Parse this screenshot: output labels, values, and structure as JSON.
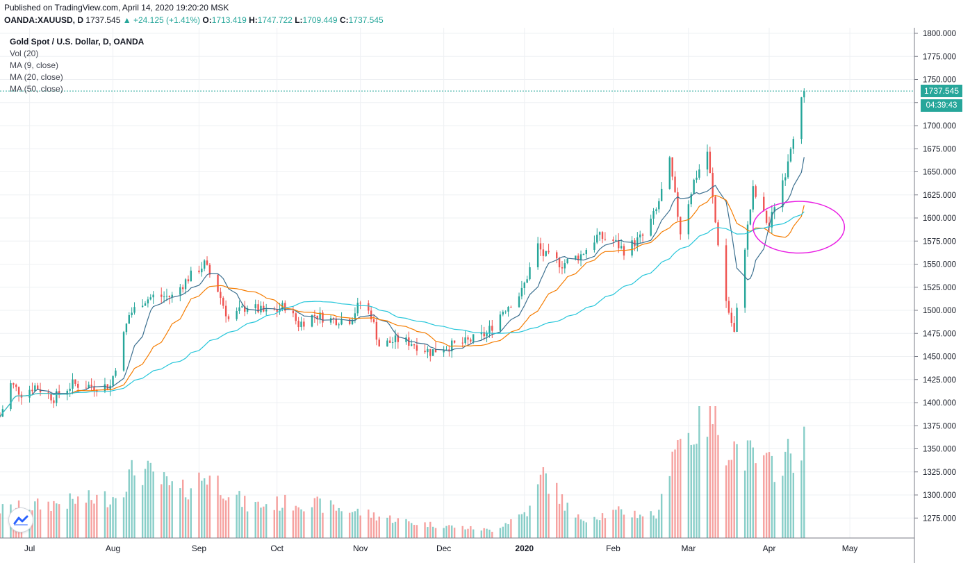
{
  "header": {
    "published": "Published on TradingView.com, April 14, 2020 19:20:20 MSK",
    "symbol": "OANDA:XAUUSD, D",
    "last": "1737.545",
    "change": "▲ +24.125 (+1.41%)",
    "o_label": "O:",
    "o": "1713.419",
    "h_label": "H:",
    "h": "1747.722",
    "l_label": "L:",
    "l": "1709.449",
    "c_label": "C:",
    "c": "1737.545"
  },
  "legend": {
    "title": "Gold Spot / U.S. Dollar, D, OANDA",
    "vol": "Vol (20)",
    "ma9": "MA (9, close)",
    "ma20": "MA (20, close)",
    "ma50": "MA (50, close)"
  },
  "price_tag": {
    "last": "1737.545",
    "countdown": "04:39:43"
  },
  "colors": {
    "up": "#26a69a",
    "down": "#ef5350",
    "ma9": "#3b6f8f",
    "ma20": "#f57c00",
    "ma50": "#26c6da",
    "annotation": "#e91ee3",
    "grid": "#eef0f3"
  },
  "chart_data": {
    "type": "candlestick",
    "title": "Gold Spot / U.S. Dollar, D, OANDA",
    "y_range": [
      1250,
      1800
    ],
    "y_ticks": [
      1275,
      1300,
      1325,
      1350,
      1375,
      1400,
      1425,
      1450,
      1475,
      1500,
      1525,
      1550,
      1575,
      1600,
      1625,
      1650,
      1675,
      1700,
      1725,
      1750,
      1775,
      1800
    ],
    "y_tick_labels": [
      "1275.000",
      "1300.000",
      "1325.000",
      "1350.000",
      "1375.000",
      "1400.000",
      "1425.000",
      "1450.000",
      "1475.000",
      "1500.000",
      "1525.000",
      "1550.000",
      "1575.000",
      "1600.000",
      "1625.000",
      "1650.000",
      "1675.000",
      "1700.000",
      "1725.000",
      "1750.000",
      "1775.000",
      "1800.000"
    ],
    "x_labels": [
      "Jul",
      "Aug",
      "Sep",
      "Oct",
      "Nov",
      "Dec",
      "2020",
      "Feb",
      "Mar",
      "Apr",
      "May"
    ],
    "x_label_dates": [
      "2019-07-01",
      "2019-08-01",
      "2019-09-02",
      "2019-10-01",
      "2019-11-01",
      "2019-12-02",
      "2020-01-01",
      "2020-02-03",
      "2020-03-02",
      "2020-04-01",
      "2020-05-01"
    ],
    "x_range": [
      "2019-06-20",
      "2020-05-25"
    ],
    "last_price": 1737.545,
    "price_path": [
      [
        "2019-06-20",
        1385
      ],
      [
        "2019-06-24",
        1420
      ],
      [
        "2019-06-28",
        1410
      ],
      [
        "2019-07-03",
        1418
      ],
      [
        "2019-07-10",
        1405
      ],
      [
        "2019-07-17",
        1420
      ],
      [
        "2019-07-24",
        1418
      ],
      [
        "2019-07-31",
        1418
      ],
      [
        "2019-08-07",
        1495
      ],
      [
        "2019-08-12",
        1510
      ],
      [
        "2019-08-16",
        1515
      ],
      [
        "2019-08-23",
        1515
      ],
      [
        "2019-08-29",
        1535
      ],
      [
        "2019-09-04",
        1550
      ],
      [
        "2019-09-09",
        1522
      ],
      [
        "2019-09-13",
        1490
      ],
      [
        "2019-09-20",
        1505
      ],
      [
        "2019-09-27",
        1497
      ],
      [
        "2019-10-01",
        1500
      ],
      [
        "2019-10-04",
        1505
      ],
      [
        "2019-10-09",
        1485
      ],
      [
        "2019-10-15",
        1495
      ],
      [
        "2019-10-21",
        1490
      ],
      [
        "2019-10-28",
        1490
      ],
      [
        "2019-11-01",
        1508
      ],
      [
        "2019-11-05",
        1495
      ],
      [
        "2019-11-08",
        1462
      ],
      [
        "2019-11-15",
        1468
      ],
      [
        "2019-11-20",
        1465
      ],
      [
        "2019-11-27",
        1455
      ],
      [
        "2019-12-02",
        1460
      ],
      [
        "2019-12-10",
        1465
      ],
      [
        "2019-12-18",
        1475
      ],
      [
        "2019-12-24",
        1500
      ],
      [
        "2019-12-31",
        1520
      ],
      [
        "2020-01-06",
        1570
      ],
      [
        "2020-01-08",
        1560
      ],
      [
        "2020-01-15",
        1550
      ],
      [
        "2020-01-22",
        1560
      ],
      [
        "2020-01-28",
        1580
      ],
      [
        "2020-02-03",
        1575
      ],
      [
        "2020-02-07",
        1565
      ],
      [
        "2020-02-14",
        1580
      ],
      [
        "2020-02-19",
        1608
      ],
      [
        "2020-02-24",
        1660
      ],
      [
        "2020-02-28",
        1585
      ],
      [
        "2020-03-04",
        1640
      ],
      [
        "2020-03-09",
        1672
      ],
      [
        "2020-03-12",
        1595
      ],
      [
        "2020-03-16",
        1510
      ],
      [
        "2020-03-19",
        1475
      ],
      [
        "2020-03-23",
        1570
      ],
      [
        "2020-03-26",
        1630
      ],
      [
        "2020-04-01",
        1590
      ],
      [
        "2020-04-03",
        1615
      ],
      [
        "2020-04-07",
        1650
      ],
      [
        "2020-04-09",
        1680
      ],
      [
        "2020-04-14",
        1737.545
      ]
    ],
    "moving_averages": [
      {
        "name": "MA (9, close)",
        "color": "#3b6f8f"
      },
      {
        "name": "MA (20, close)",
        "color": "#f57c00"
      },
      {
        "name": "MA (50, close)",
        "color": "#26c6da"
      }
    ],
    "volume": {
      "name": "Vol (20)",
      "levels": [
        [
          "2019-06-20",
          0.22
        ],
        [
          "2019-08-01",
          0.32
        ],
        [
          "2019-08-10",
          0.55
        ],
        [
          "2019-08-26",
          0.35
        ],
        [
          "2019-09-05",
          0.5
        ],
        [
          "2019-09-20",
          0.25
        ],
        [
          "2019-10-10",
          0.28
        ],
        [
          "2019-11-01",
          0.2
        ],
        [
          "2019-11-20",
          0.12
        ],
        [
          "2019-12-20",
          0.06
        ],
        [
          "2020-01-03",
          0.22
        ],
        [
          "2020-01-08",
          0.5
        ],
        [
          "2020-01-20",
          0.15
        ],
        [
          "2020-02-05",
          0.2
        ],
        [
          "2020-02-20",
          0.18
        ],
        [
          "2020-02-25",
          0.75
        ],
        [
          "2020-03-02",
          0.8
        ],
        [
          "2020-03-06",
          0.9
        ],
        [
          "2020-03-10",
          1.0
        ],
        [
          "2020-03-16",
          0.75
        ],
        [
          "2020-03-23",
          0.65
        ],
        [
          "2020-04-01",
          0.55
        ],
        [
          "2020-04-14",
          0.72
        ]
      ]
    },
    "annotations": [
      {
        "type": "ellipse",
        "color": "#e91ee3",
        "center": [
          "2020-04-12",
          1590
        ],
        "radius_days": 17,
        "radius_price": 28
      }
    ],
    "grid": true
  }
}
